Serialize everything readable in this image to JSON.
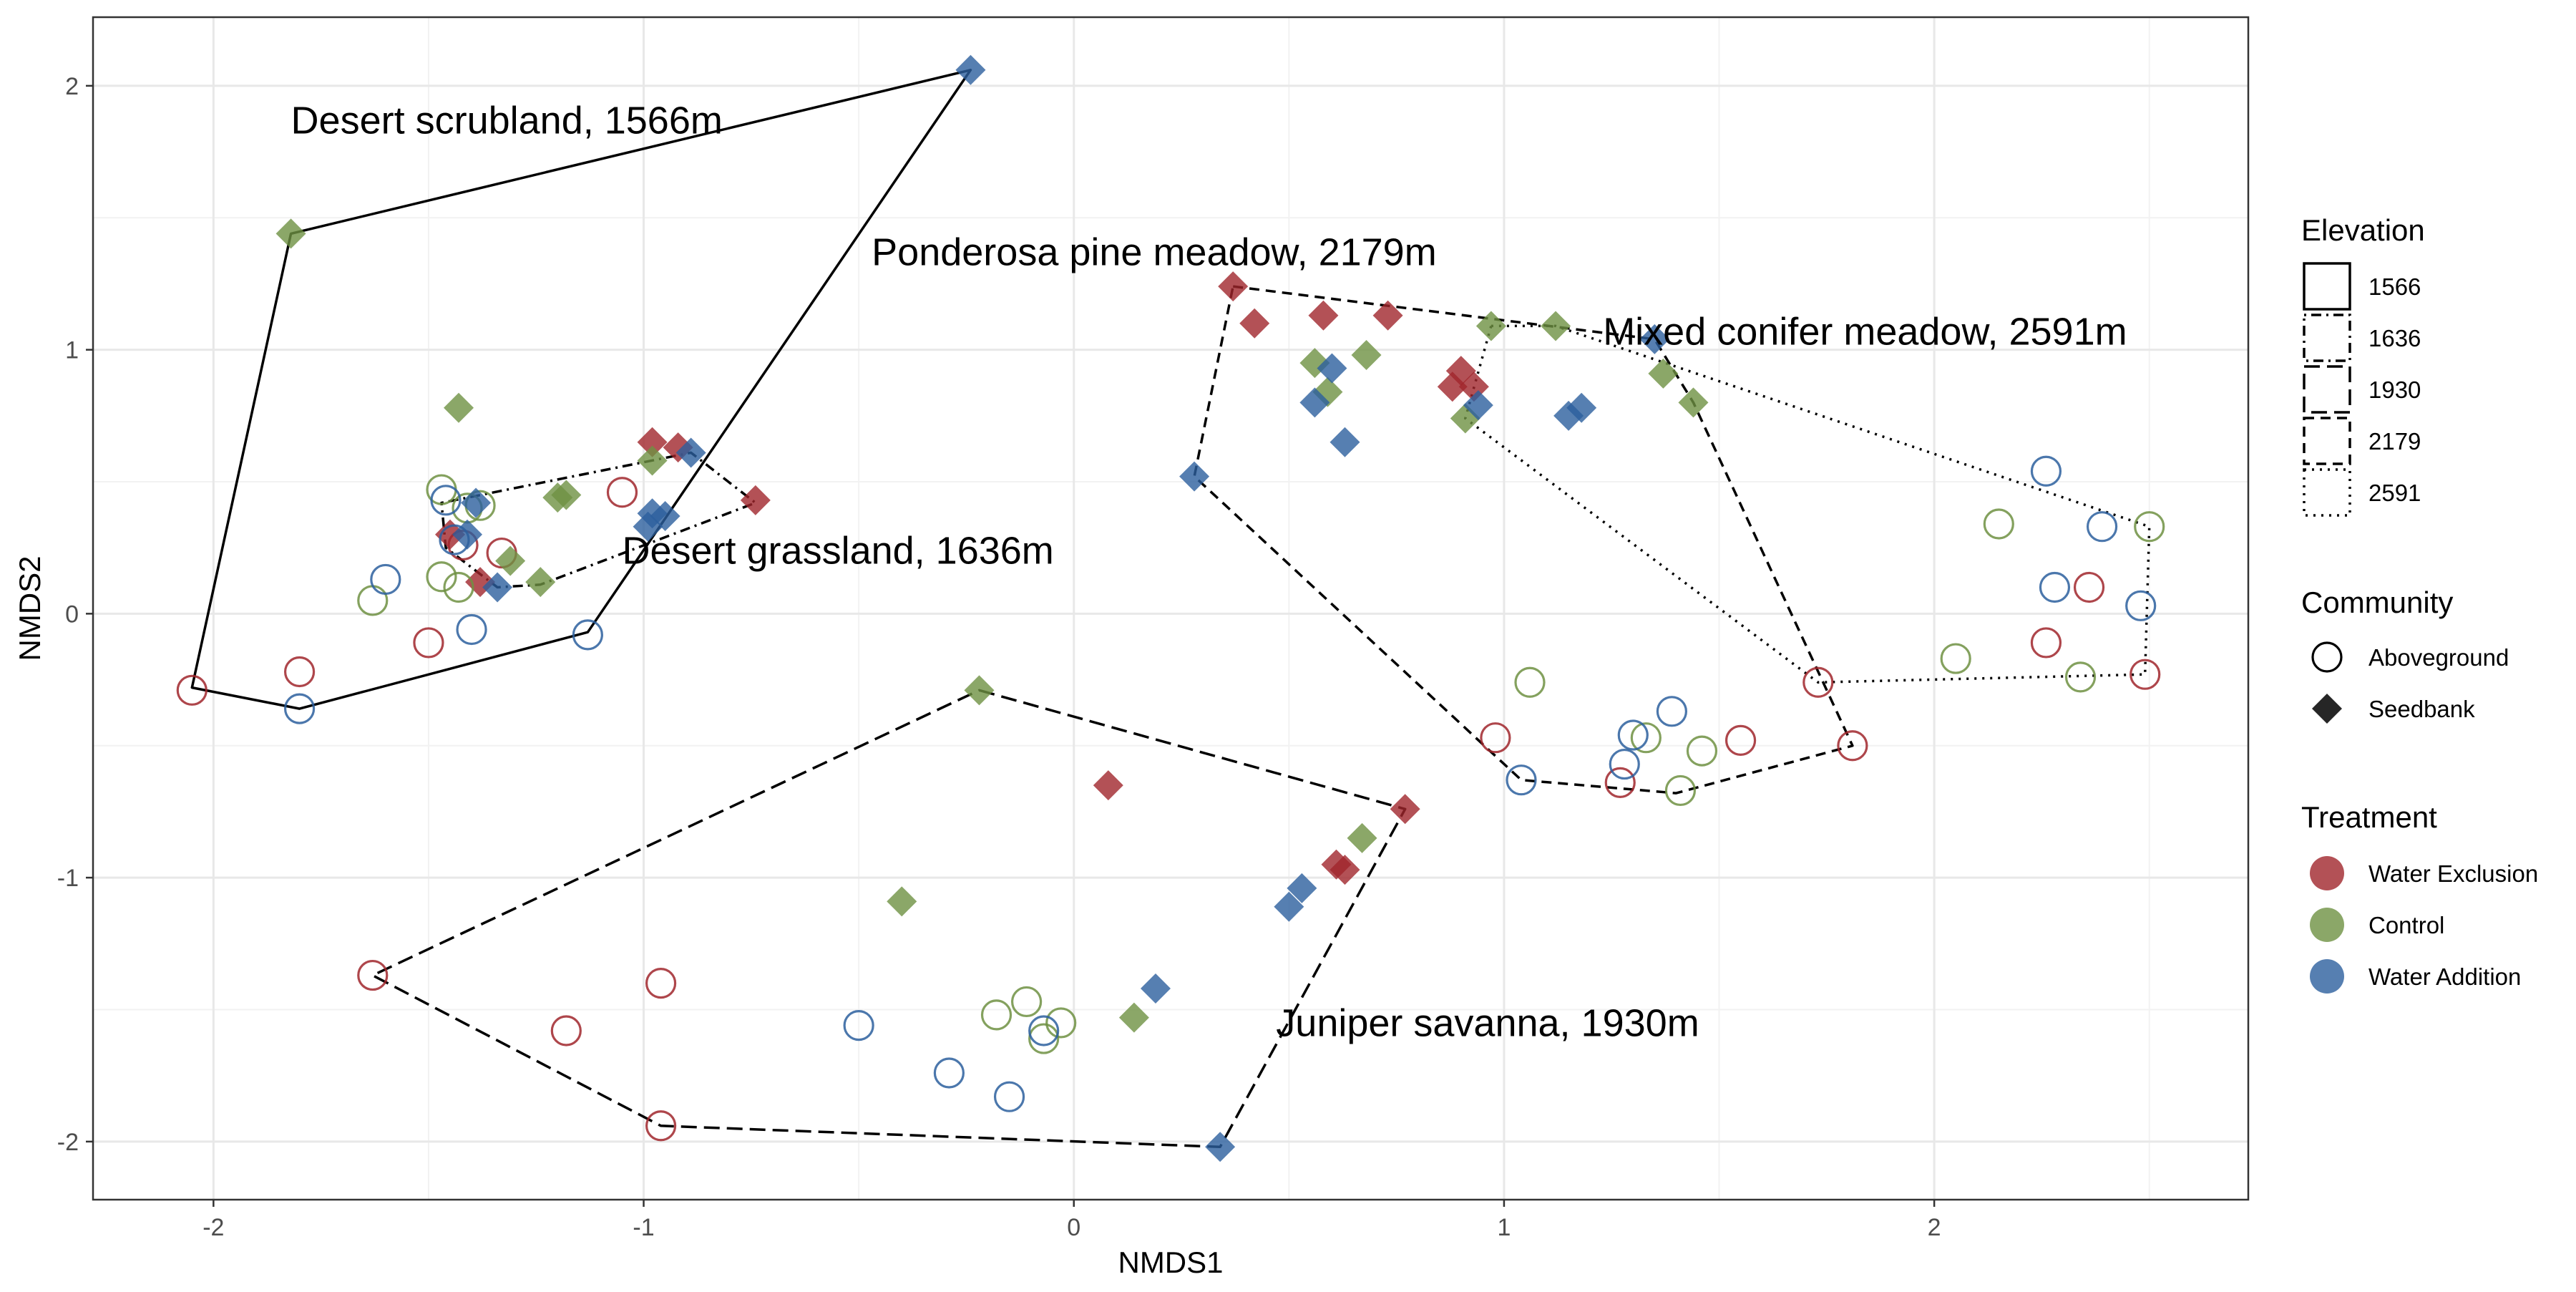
{
  "chart_data": {
    "type": "scatter",
    "title": "",
    "xlabel": "NMDS1",
    "ylabel": "NMDS2",
    "xlim": [
      -2.28,
      2.73
    ],
    "ylim": [
      -2.22,
      2.26
    ],
    "xticks": [
      -2,
      -1,
      0,
      1,
      2
    ],
    "yticks": [
      -2,
      -1,
      0,
      1,
      2
    ],
    "grid": true,
    "legend_position": "right",
    "colors": {
      "Water Exclusion": "#A0262C",
      "Control": "#6E9142",
      "Water Addition": "#2C5F9E"
    },
    "legends": {
      "elevation": {
        "title": "Elevation",
        "entries": [
          {
            "label": "1566",
            "dash": "solid"
          },
          {
            "label": "1636",
            "dash": "dotted-dashed"
          },
          {
            "label": "1930",
            "dash": "long-dashed"
          },
          {
            "label": "2179",
            "dash": "dashed"
          },
          {
            "label": "2591",
            "dash": "dotted"
          }
        ]
      },
      "community": {
        "title": "Community",
        "entries": [
          {
            "label": "Aboveground",
            "shape": "circle-open"
          },
          {
            "label": "Seedbank",
            "shape": "diamond-filled"
          }
        ]
      },
      "treatment": {
        "title": "Treatment",
        "entries": [
          "Water Exclusion",
          "Control",
          "Water Addition"
        ]
      }
    },
    "site_labels": [
      {
        "text": "Desert scrubland, 1566m",
        "x": -1.82,
        "y": 1.82
      },
      {
        "text": "Ponderosa pine meadow, 2179m",
        "x": -0.47,
        "y": 1.32
      },
      {
        "text": "Mixed conifer meadow, 2591m",
        "x": 1.23,
        "y": 1.02
      },
      {
        "text": "Desert grassland, 1636m",
        "x": -1.05,
        "y": 0.19
      },
      {
        "text": "Juniper savanna, 1930m",
        "x": 0.47,
        "y": -1.6
      }
    ],
    "hulls": [
      {
        "elevation": "1566",
        "dash": "solid",
        "points": [
          [
            -0.24,
            2.06
          ],
          [
            -1.82,
            1.44
          ],
          [
            -2.05,
            -0.28
          ],
          [
            -1.8,
            -0.36
          ],
          [
            -1.13,
            -0.07
          ]
        ]
      },
      {
        "elevation": "1636",
        "dash": "dotted-dashed",
        "points": [
          [
            -1.47,
            0.42
          ],
          [
            -0.89,
            0.61
          ],
          [
            -0.74,
            0.42
          ],
          [
            -1.24,
            0.11
          ],
          [
            -1.34,
            0.1
          ],
          [
            -1.46,
            0.25
          ]
        ]
      },
      {
        "elevation": "1930",
        "dash": "long-dashed",
        "points": [
          [
            -0.22,
            -0.29
          ],
          [
            0.77,
            -0.74
          ],
          [
            0.34,
            -2.02
          ],
          [
            -0.96,
            -1.94
          ],
          [
            -1.63,
            -1.37
          ]
        ]
      },
      {
        "elevation": "2179",
        "dash": "dashed",
        "points": [
          [
            0.37,
            1.24
          ],
          [
            1.35,
            1.04
          ],
          [
            1.44,
            0.8
          ],
          [
            1.81,
            -0.5
          ],
          [
            1.4,
            -0.68
          ],
          [
            1.04,
            -0.63
          ],
          [
            0.28,
            0.52
          ]
        ]
      },
      {
        "elevation": "2591",
        "dash": "dotted",
        "points": [
          [
            0.97,
            1.09
          ],
          [
            1.12,
            1.09
          ],
          [
            2.5,
            0.33
          ],
          [
            2.49,
            -0.23
          ],
          [
            1.73,
            -0.26
          ],
          [
            0.91,
            0.74
          ]
        ]
      }
    ],
    "series": [
      {
        "name": "Water Exclusion",
        "community": "Aboveground",
        "points": [
          [
            -2.05,
            -0.29
          ],
          [
            -1.8,
            -0.22
          ],
          [
            -1.5,
            -0.11
          ],
          [
            -1.05,
            0.46
          ],
          [
            -1.42,
            0.26
          ],
          [
            -1.33,
            0.23
          ],
          [
            -1.63,
            -1.37
          ],
          [
            -1.18,
            -1.58
          ],
          [
            -0.96,
            -1.4
          ],
          [
            -0.96,
            -1.94
          ],
          [
            0.98,
            -0.47
          ],
          [
            1.27,
            -0.64
          ],
          [
            1.55,
            -0.48
          ],
          [
            1.81,
            -0.5
          ],
          [
            1.73,
            -0.26
          ],
          [
            2.26,
            -0.11
          ],
          [
            2.36,
            0.1
          ],
          [
            2.49,
            -0.23
          ]
        ]
      },
      {
        "name": "Water Exclusion",
        "community": "Seedbank",
        "points": [
          [
            -0.98,
            0.65
          ],
          [
            -0.92,
            0.63
          ],
          [
            -1.38,
            0.12
          ],
          [
            -1.45,
            0.3
          ],
          [
            -0.74,
            0.43
          ],
          [
            0.37,
            1.24
          ],
          [
            0.42,
            1.1
          ],
          [
            0.58,
            1.13
          ],
          [
            0.73,
            1.13
          ],
          [
            0.9,
            0.92
          ],
          [
            0.88,
            0.86
          ],
          [
            0.93,
            0.86
          ],
          [
            0.08,
            -0.65
          ],
          [
            0.61,
            -0.95
          ],
          [
            0.63,
            -0.97
          ],
          [
            0.77,
            -0.74
          ]
        ]
      },
      {
        "name": "Control",
        "community": "Aboveground",
        "points": [
          [
            -1.47,
            0.47
          ],
          [
            -1.41,
            0.4
          ],
          [
            -1.38,
            0.41
          ],
          [
            -1.47,
            0.14
          ],
          [
            -1.43,
            0.1
          ],
          [
            -1.63,
            0.05
          ],
          [
            -0.18,
            -1.52
          ],
          [
            -0.11,
            -1.47
          ],
          [
            -0.07,
            -1.61
          ],
          [
            -0.03,
            -1.55
          ],
          [
            1.06,
            -0.26
          ],
          [
            1.33,
            -0.47
          ],
          [
            1.41,
            -0.67
          ],
          [
            1.46,
            -0.52
          ],
          [
            2.05,
            -0.17
          ],
          [
            2.15,
            0.34
          ],
          [
            2.34,
            -0.24
          ],
          [
            2.5,
            0.33
          ]
        ]
      },
      {
        "name": "Control",
        "community": "Seedbank",
        "points": [
          [
            -1.82,
            1.44
          ],
          [
            -1.43,
            0.78
          ],
          [
            -1.18,
            0.45
          ],
          [
            -1.2,
            0.44
          ],
          [
            -0.98,
            0.58
          ],
          [
            -1.31,
            0.2
          ],
          [
            -1.24,
            0.12
          ],
          [
            -0.4,
            -1.09
          ],
          [
            -0.22,
            -0.29
          ],
          [
            0.14,
            -1.53
          ],
          [
            0.67,
            -0.85
          ],
          [
            0.56,
            0.95
          ],
          [
            0.59,
            0.84
          ],
          [
            0.68,
            0.98
          ],
          [
            0.97,
            1.09
          ],
          [
            1.12,
            1.09
          ],
          [
            1.37,
            0.91
          ],
          [
            1.44,
            0.8
          ],
          [
            0.91,
            0.74
          ]
        ]
      },
      {
        "name": "Water Addition",
        "community": "Aboveground",
        "points": [
          [
            -1.8,
            -0.36
          ],
          [
            -1.6,
            0.13
          ],
          [
            -1.46,
            0.43
          ],
          [
            -1.44,
            0.28
          ],
          [
            -1.4,
            -0.06
          ],
          [
            -1.13,
            -0.08
          ],
          [
            -0.5,
            -1.56
          ],
          [
            -0.29,
            -1.74
          ],
          [
            -0.15,
            -1.83
          ],
          [
            -0.07,
            -1.58
          ],
          [
            1.04,
            -0.63
          ],
          [
            1.28,
            -0.57
          ],
          [
            1.3,
            -0.46
          ],
          [
            1.39,
            -0.37
          ],
          [
            2.26,
            0.54
          ],
          [
            2.28,
            0.1
          ],
          [
            2.39,
            0.33
          ],
          [
            2.48,
            0.03
          ]
        ]
      },
      {
        "name": "Water Addition",
        "community": "Seedbank",
        "points": [
          [
            -0.24,
            2.06
          ],
          [
            -0.89,
            0.61
          ],
          [
            -0.98,
            0.38
          ],
          [
            -0.95,
            0.37
          ],
          [
            -0.99,
            0.33
          ],
          [
            -1.34,
            0.1
          ],
          [
            -1.39,
            0.42
          ],
          [
            -1.41,
            0.3
          ],
          [
            0.19,
            -1.42
          ],
          [
            0.34,
            -2.02
          ],
          [
            0.5,
            -1.11
          ],
          [
            0.53,
            -1.04
          ],
          [
            0.28,
            0.52
          ],
          [
            0.56,
            0.8
          ],
          [
            0.6,
            0.93
          ],
          [
            0.63,
            0.65
          ],
          [
            0.94,
            0.79
          ],
          [
            1.15,
            0.75
          ],
          [
            1.18,
            0.78
          ],
          [
            1.35,
            1.04
          ]
        ]
      }
    ]
  }
}
